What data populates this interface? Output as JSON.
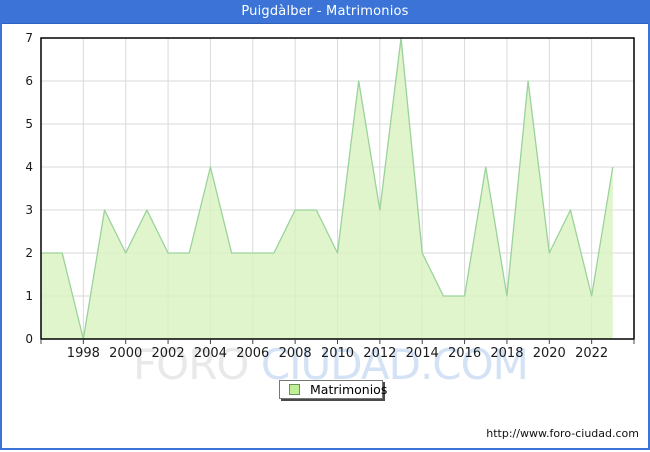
{
  "window": {
    "title": "Puigdàlber - Matrimonios"
  },
  "chart_data": {
    "type": "area",
    "title": "Puigdàlber - Matrimonios",
    "xlabel": "",
    "ylabel": "",
    "xlim": [
      1996,
      2024
    ],
    "ylim": [
      0,
      7
    ],
    "grid": true,
    "y_ticks": [
      0,
      1,
      2,
      3,
      4,
      5,
      6,
      7
    ],
    "x_tick_labels": [
      "1998",
      "2000",
      "2002",
      "2004",
      "2006",
      "2008",
      "2010",
      "2012",
      "2014",
      "2016",
      "2018",
      "2020",
      "2022"
    ],
    "legend_position": "bottom-center",
    "series": [
      {
        "name": "Matrimonios",
        "x": [
          1996,
          1997,
          1998,
          1999,
          2000,
          2001,
          2002,
          2003,
          2004,
          2005,
          2006,
          2007,
          2008,
          2009,
          2010,
          2011,
          2012,
          2013,
          2014,
          2015,
          2016,
          2017,
          2018,
          2019,
          2020,
          2021,
          2022,
          2023
        ],
        "values": [
          2,
          2,
          0,
          3,
          2,
          3,
          2,
          2,
          4,
          2,
          2,
          2,
          3,
          3,
          2,
          6,
          3,
          7,
          2,
          1,
          1,
          4,
          1,
          6,
          2,
          3,
          1,
          4
        ]
      }
    ],
    "colors": {
      "titlebar": "#3b74d6",
      "page_border": "#3b74d6",
      "area_fill": "rgba(217,243,192,0.8)",
      "line": "#9bd29b",
      "grid": "#d9d9d9",
      "frame": "#000000",
      "tick": "#444444",
      "label": "#1a1a1a",
      "legend_swatch": "#bff096",
      "legend_swatch_border": "#6f8f62",
      "watermark_gray": "#e9e9e9",
      "watermark_blue": "#d3e2f5"
    }
  },
  "legend": {
    "label": "Matrimonios"
  },
  "watermark": {
    "part1": "FORO",
    "part2": " CIUDAD.COM"
  },
  "footer": {
    "url": "http://www.foro-ciudad.com"
  }
}
